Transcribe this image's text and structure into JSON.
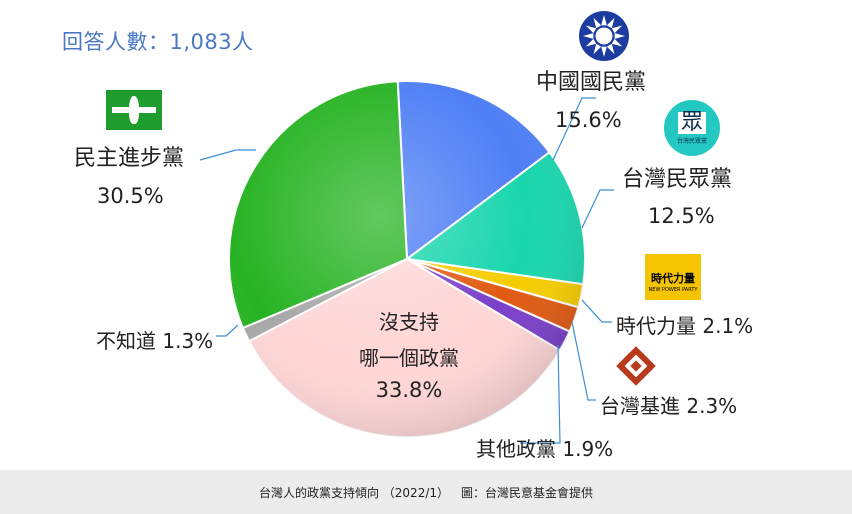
{
  "header": {
    "respondents": "回答人數：1,083人"
  },
  "caption": {
    "title": "台灣人的政黨支持傾向 （2022/1）",
    "credit": "圖：台灣民意基金會提供"
  },
  "logos": {
    "tpp_text": "眾",
    "tpp_sub": "台灣民眾黨",
    "npp_text": "時代力量",
    "npp_sub": "NEW POWER PARTY"
  },
  "chart_data": {
    "type": "pie",
    "title": "",
    "start_angle_deg": -3.0,
    "direction": "clockwise",
    "slices": [
      {
        "name": "中國國民黨",
        "value": 15.6,
        "label": "15.6%",
        "color": "#4f7ff5"
      },
      {
        "name": "台灣民眾黨",
        "value": 12.5,
        "label": "12.5%",
        "color": "#19d6ad"
      },
      {
        "name": "時代力量",
        "value": 2.1,
        "label": "時代力量 2.1%",
        "color": "#f6cd00"
      },
      {
        "name": "台灣基進",
        "value": 2.3,
        "label": "台灣基進 2.3%",
        "color": "#e05a12"
      },
      {
        "name": "其他政黨",
        "value": 1.9,
        "label": "其他政黨 1.9%",
        "color": "#7a3fc9"
      },
      {
        "name": "沒支持哪一個政黨",
        "value": 33.8,
        "label": "33.8%",
        "color": "#ffd6d6"
      },
      {
        "name": "不知道",
        "value": 1.3,
        "label": "不知道 1.3%",
        "color": "#a8a8a8"
      },
      {
        "name": "民主進步黨",
        "value": 30.5,
        "label": "30.5%",
        "color": "#27b323"
      }
    ],
    "none_label_line1": "沒支持",
    "none_label_line2": "哪一個政黨"
  }
}
